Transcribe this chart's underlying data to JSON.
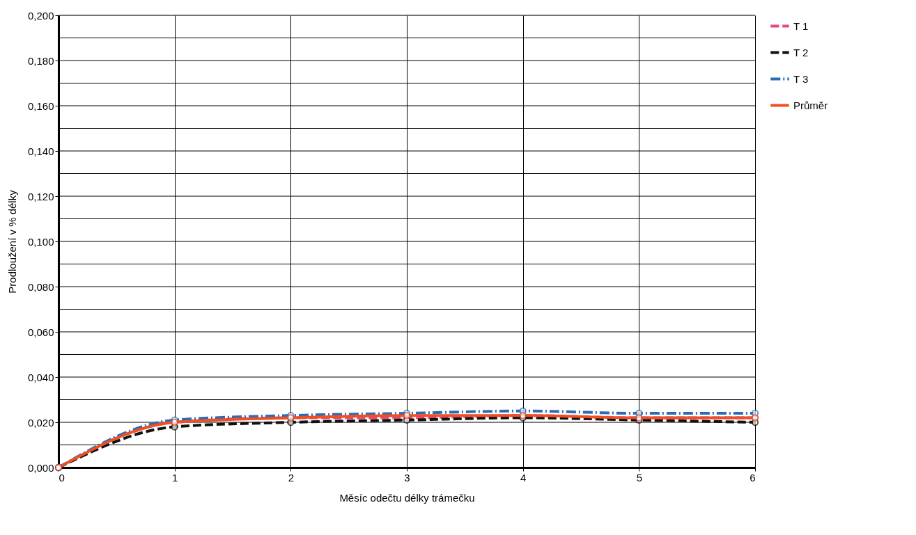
{
  "chart_data": {
    "type": "line",
    "xlabel": "Měsíc odečtu délky trámečku",
    "ylabel": "Prodloužení v % délky",
    "x": [
      0,
      1,
      2,
      3,
      4,
      5,
      6
    ],
    "xlim": [
      0,
      6
    ],
    "xticks": [
      0,
      1,
      2,
      3,
      4,
      5,
      6
    ],
    "ylim": [
      0,
      0.2
    ],
    "yticks": [
      {
        "value": 0,
        "label": "0,000"
      },
      {
        "value": 0.01,
        "label": null
      },
      {
        "value": 0.02,
        "label": "0,020"
      },
      {
        "value": 0.03,
        "label": null
      },
      {
        "value": 0.04,
        "label": "0,040"
      },
      {
        "value": 0.05,
        "label": null
      },
      {
        "value": 0.06,
        "label": "0,060"
      },
      {
        "value": 0.07,
        "label": null
      },
      {
        "value": 0.08,
        "label": "0,080"
      },
      {
        "value": 0.09,
        "label": null
      },
      {
        "value": 0.1,
        "label": "0,100"
      },
      {
        "value": 0.11,
        "label": null
      },
      {
        "value": 0.12,
        "label": "0,120"
      },
      {
        "value": 0.13,
        "label": null
      },
      {
        "value": 0.14,
        "label": "0,140"
      },
      {
        "value": 0.15,
        "label": null
      },
      {
        "value": 0.16,
        "label": "0,160"
      },
      {
        "value": 0.17,
        "label": null
      },
      {
        "value": 0.18,
        "label": "0,180"
      },
      {
        "value": 0.19,
        "label": null
      },
      {
        "value": 0.2,
        "label": "0,200"
      }
    ],
    "grid": true,
    "legend": "right",
    "marker": "circle",
    "series": [
      {
        "name": "T 1",
        "color": "#e8487a",
        "line_style": "dashed",
        "values": [
          0,
          0.02,
          0.022,
          0.022,
          0.023,
          0.022,
          0.022
        ]
      },
      {
        "name": "T 2",
        "color": "#111111",
        "line_style": "dashed",
        "values": [
          0,
          0.018,
          0.02,
          0.021,
          0.022,
          0.021,
          0.02
        ]
      },
      {
        "name": "T 3",
        "color": "#2a6db5",
        "line_style": "dotted",
        "values": [
          0,
          0.021,
          0.023,
          0.024,
          0.025,
          0.024,
          0.024
        ]
      },
      {
        "name": "Průměr",
        "color": "#f04e23",
        "line_style": "solid",
        "values": [
          0,
          0.02,
          0.022,
          0.023,
          0.023,
          0.022,
          0.022
        ]
      }
    ]
  }
}
